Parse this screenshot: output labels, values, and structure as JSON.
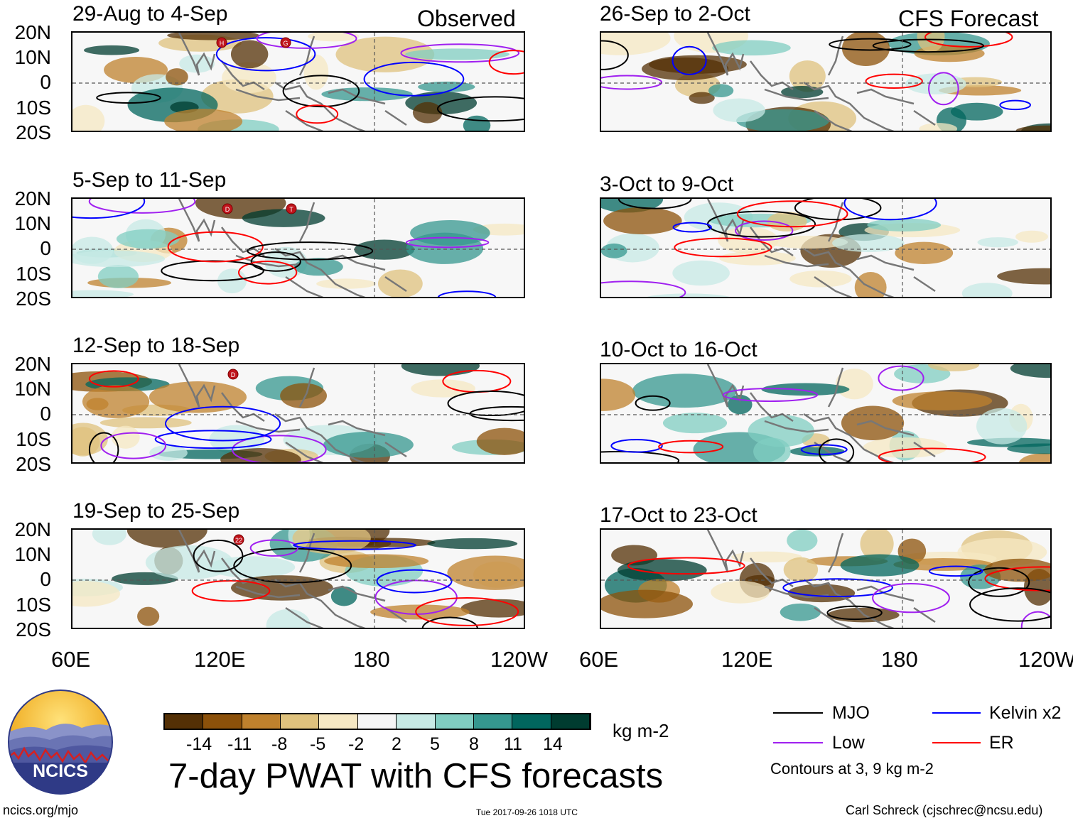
{
  "headers": {
    "observed": "Observed",
    "forecast": "CFS Forecast"
  },
  "panels": [
    {
      "title": "29-Aug to 4-Sep",
      "group": "observed"
    },
    {
      "title": "5-Sep to 11-Sep",
      "group": "observed"
    },
    {
      "title": "12-Sep to 18-Sep",
      "group": "observed"
    },
    {
      "title": "19-Sep to 25-Sep",
      "group": "observed"
    },
    {
      "title": "26-Sep to 2-Oct",
      "group": "forecast"
    },
    {
      "title": "3-Oct to 9-Oct",
      "group": "forecast"
    },
    {
      "title": "10-Oct to 16-Oct",
      "group": "forecast"
    },
    {
      "title": "17-Oct to 23-Oct",
      "group": "forecast"
    }
  ],
  "lat_labels": [
    "20N",
    "10N",
    "0",
    "10S",
    "20S"
  ],
  "lon_labels": [
    "60E",
    "120E",
    "180",
    "120W"
  ],
  "colorbar": {
    "colors": [
      "#543005",
      "#8c510a",
      "#bf812d",
      "#dfc27d",
      "#f6e8c3",
      "#f5f5f5",
      "#c7eae5",
      "#80cdc1",
      "#35978f",
      "#01665e",
      "#003c30"
    ],
    "ticks": [
      "-14",
      "-11",
      "-8",
      "-5",
      "-2",
      "2",
      "5",
      "8",
      "11",
      "14"
    ],
    "unit": "kg m-2"
  },
  "title": "7-day PWAT with CFS forecasts",
  "legend": {
    "items": [
      {
        "label": "MJO",
        "color": "#000000"
      },
      {
        "label": "Kelvin x2",
        "color": "#0000ff"
      },
      {
        "label": "Low",
        "color": "#a020f0"
      },
      {
        "label": "ER",
        "color": "#ff0000"
      }
    ],
    "note": "Contours at 3, 9 kg m-2"
  },
  "logo_text": "NCICS",
  "footer": {
    "url": "ncics.org/mjo",
    "timestamp": "Tue 2017-09-26 1018 UTC",
    "author": "Carl Schreck (cjschrec@ncsu.edu)"
  },
  "storm_markers": [
    {
      "panel": 0,
      "letters": [
        "H",
        "G"
      ]
    },
    {
      "panel": 1,
      "letters": [
        "D",
        "T"
      ]
    },
    {
      "panel": 2,
      "letters": [
        "D"
      ]
    },
    {
      "panel": 3,
      "letters": [
        "22"
      ]
    }
  ]
}
